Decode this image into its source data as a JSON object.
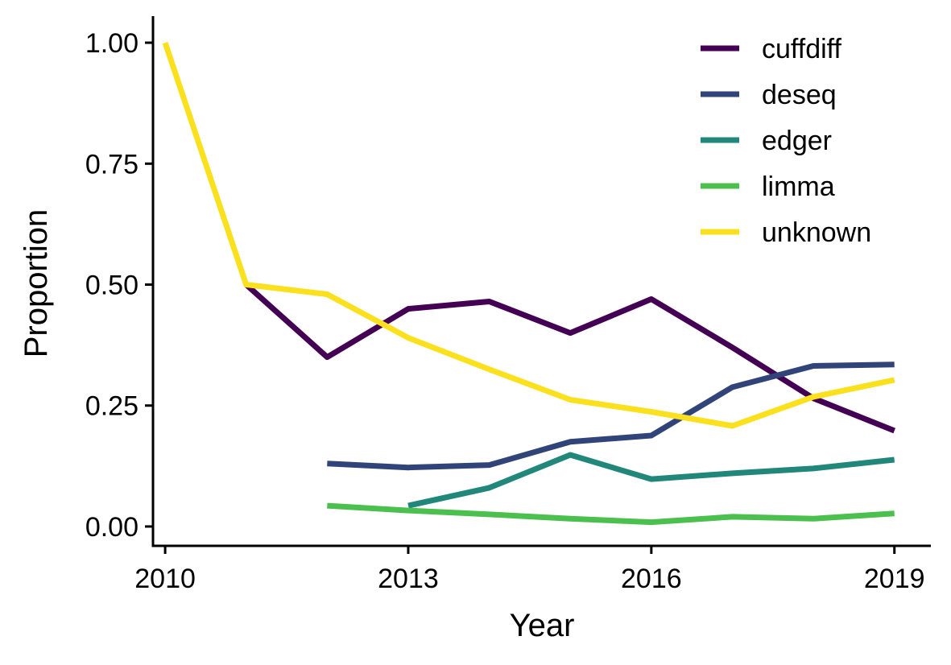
{
  "chart_data": {
    "type": "line",
    "title": "",
    "xlabel": "Year",
    "ylabel": "Proportion",
    "xlim": [
      2009.85,
      2019.45
    ],
    "ylim": [
      -0.04,
      1.055
    ],
    "xticks": [
      2010,
      2013,
      2016,
      2019
    ],
    "xtick_labels": [
      "2010",
      "2013",
      "2016",
      "2019"
    ],
    "yticks": [
      0,
      0.25,
      0.5,
      0.75,
      1
    ],
    "ytick_labels": [
      "0.00",
      "0.25",
      "0.50",
      "0.75",
      "1.00"
    ],
    "grid": false,
    "legend_position": "top-right",
    "series": [
      {
        "name": "cuffdiff",
        "color": "#440154",
        "x": [
          2011,
          2012,
          2013,
          2014,
          2015,
          2016,
          2017,
          2018,
          2019
        ],
        "values": [
          0.5,
          0.35,
          0.45,
          0.465,
          0.4,
          0.47,
          0.37,
          0.265,
          0.198
        ]
      },
      {
        "name": "deseq",
        "color": "#31447A",
        "x": [
          2012,
          2013,
          2014,
          2015,
          2016,
          2017,
          2018,
          2019
        ],
        "values": [
          0.13,
          0.122,
          0.127,
          0.175,
          0.188,
          0.288,
          0.332,
          0.335
        ]
      },
      {
        "name": "edger",
        "color": "#21877A",
        "x": [
          2013,
          2014,
          2015,
          2016,
          2017,
          2018,
          2019
        ],
        "values": [
          0.043,
          0.08,
          0.148,
          0.098,
          0.11,
          0.12,
          0.138
        ]
      },
      {
        "name": "limma",
        "color": "#4CC04F",
        "x": [
          2012,
          2013,
          2014,
          2015,
          2016,
          2017,
          2018,
          2019
        ],
        "values": [
          0.043,
          0.033,
          0.025,
          0.016,
          0.009,
          0.02,
          0.016,
          0.027
        ]
      },
      {
        "name": "unknown",
        "color": "#FBE01D",
        "x": [
          2010,
          2011,
          2012,
          2013,
          2014,
          2015,
          2016,
          2017,
          2018,
          2019
        ],
        "values": [
          1.0,
          0.5,
          0.48,
          0.39,
          0.325,
          0.262,
          0.237,
          0.208,
          0.268,
          0.303
        ]
      }
    ]
  }
}
